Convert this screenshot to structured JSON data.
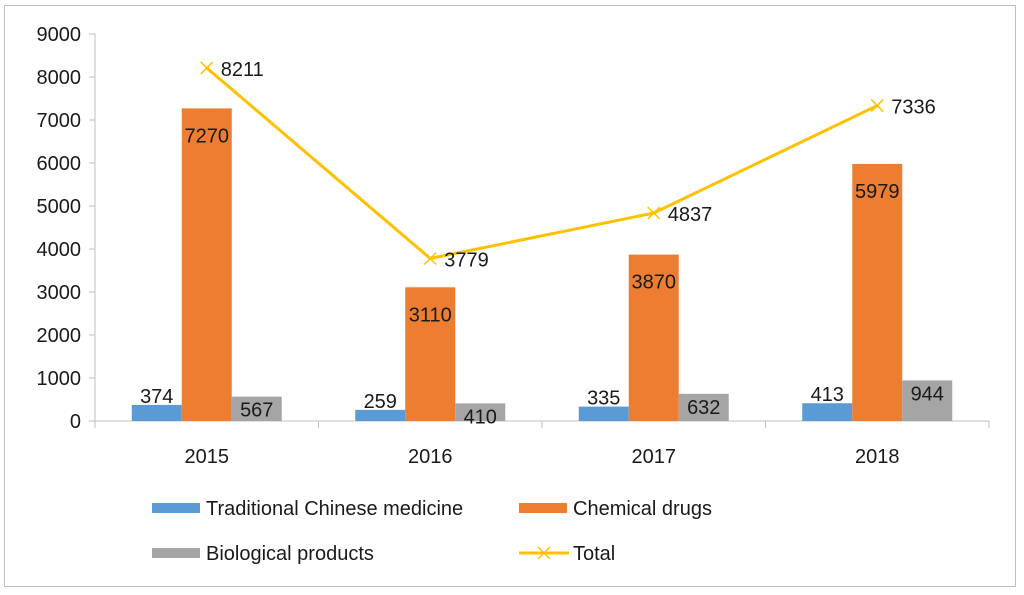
{
  "chart_data": {
    "type": "bar",
    "title": "",
    "xlabel": "",
    "ylabel": "",
    "categories": [
      "2015",
      "2016",
      "2017",
      "2018"
    ],
    "ylim": [
      0,
      9000
    ],
    "yticks": [
      0,
      1000,
      2000,
      3000,
      4000,
      5000,
      6000,
      7000,
      8000,
      9000
    ],
    "grid": false,
    "legend_position": "bottom",
    "series": [
      {
        "name": "Traditional Chinese medicine",
        "type": "bar",
        "color": "#5b9bd5",
        "values": [
          374,
          259,
          335,
          413
        ]
      },
      {
        "name": "Chemical drugs",
        "type": "bar",
        "color": "#ed7d31",
        "values": [
          7270,
          3110,
          3870,
          5979
        ]
      },
      {
        "name": "Biological products",
        "type": "bar",
        "color": "#a5a5a5",
        "values": [
          567,
          410,
          632,
          944
        ]
      },
      {
        "name": "Total",
        "type": "line",
        "marker": "x",
        "color": "#ffc000",
        "values": [
          8211,
          3779,
          4837,
          7336
        ]
      }
    ]
  }
}
